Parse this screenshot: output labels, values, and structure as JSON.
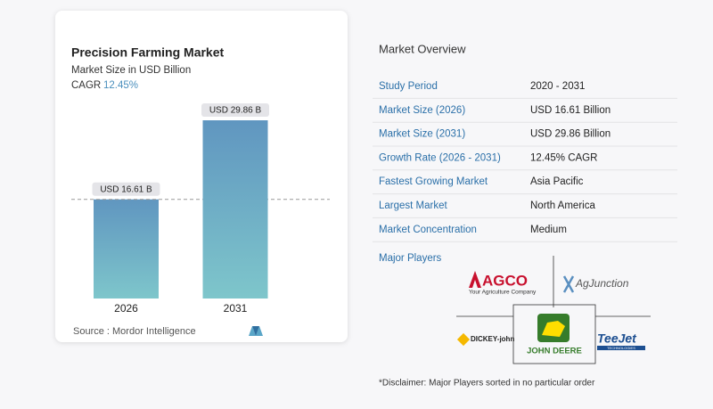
{
  "chart_data": {
    "type": "bar",
    "title": "Precision Farming Market",
    "subtitle": "Market Size in USD Billion",
    "cagr_label": "CAGR",
    "cagr": "12.45%",
    "categories": [
      "2026",
      "2031"
    ],
    "values": [
      16.61,
      29.86
    ],
    "value_labels": [
      "USD 16.61 B",
      "USD 29.86 B"
    ],
    "color": "#5f93bd",
    "source": "Source :  Mordor Intelligence"
  },
  "overview": {
    "title": "Market Overview",
    "rows": [
      [
        "Study Period",
        "2020 - 2031"
      ],
      [
        "Market Size (2026)",
        "USD 16.61 Billion"
      ],
      [
        "Market Size (2031)",
        "USD 29.86 Billion"
      ],
      [
        "Growth Rate (2026 - 2031)",
        "12.45% CAGR"
      ],
      [
        "Fastest Growing Market",
        "Asia Pacific"
      ],
      [
        "Largest Market",
        "North America"
      ],
      [
        "Market Concentration",
        "Medium"
      ]
    ],
    "players_label": "Major Players",
    "players": [
      "AGCO",
      "Your Agriculture Company",
      "AgJunction",
      "DICKEY-john",
      "JOHN DEERE",
      "TeeJet",
      "TECHNOLOGIES"
    ],
    "disclaimer": "*Disclaimer: Major Players sorted in no particular order"
  }
}
